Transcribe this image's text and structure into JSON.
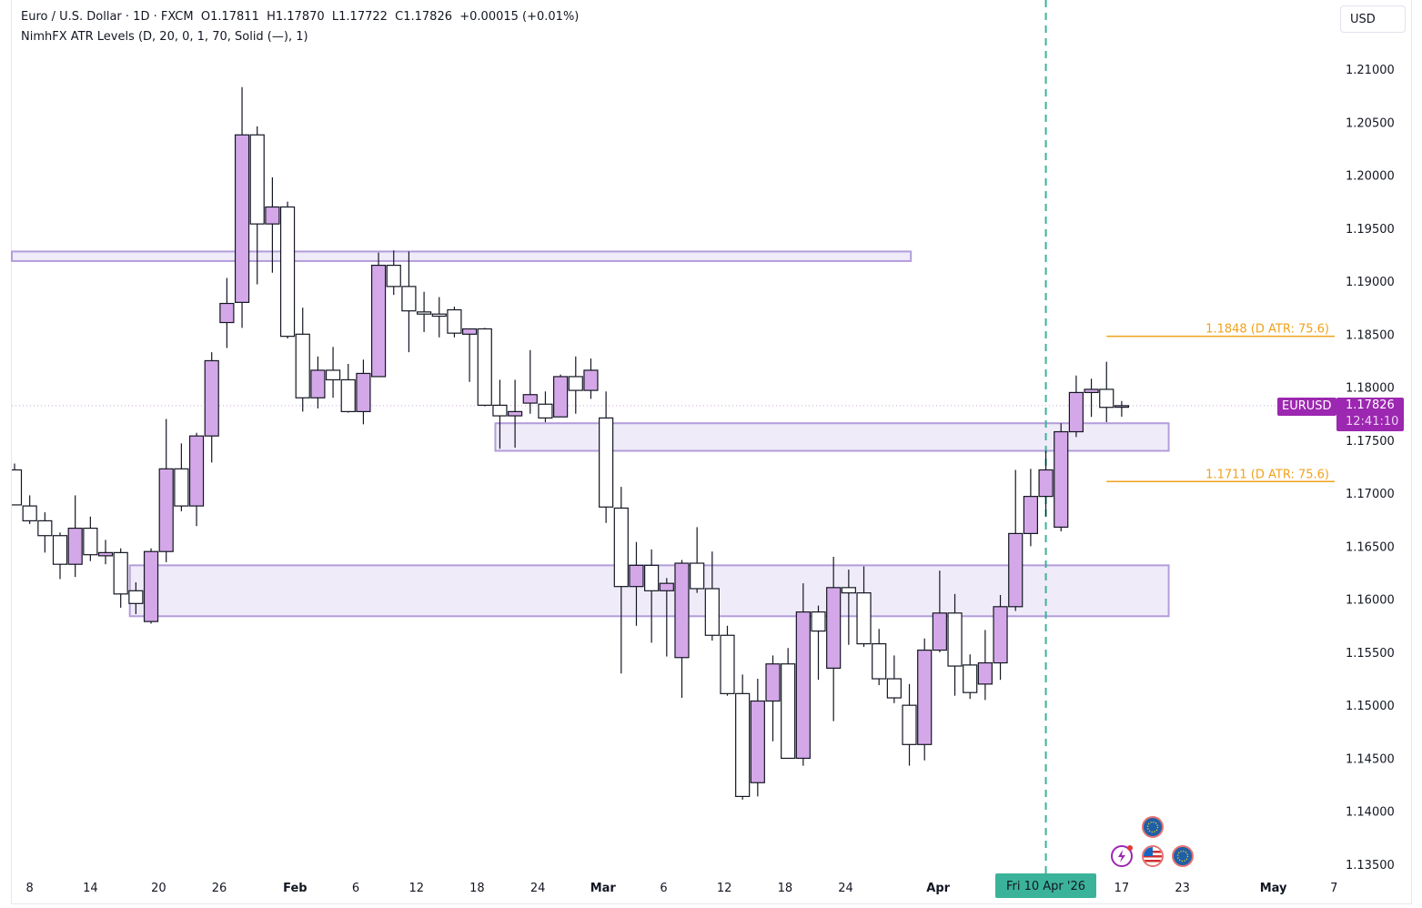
{
  "legend": {
    "line1": "Euro / U.S. Dollar · 1D · FXCM  O1.17811  H1.17870  L1.17722  C1.17826  +0.00015 (+0.01%)",
    "line2": "NimhFX ATR Levels (D, 20, 0, 1, 70, Solid (—), 1)"
  },
  "currency_button": "USD",
  "symbol_tag": "EURUSD",
  "last_price": "1.17826",
  "countdown": "12:41:10",
  "crosshair_date": "Fri 10 Apr '26",
  "colors": {
    "bull": "#d4a8e8",
    "bear": "#ffffff",
    "zone_fill": "#ede8f8",
    "zone_border": "#b39ddb",
    "atr": "#f0a21c",
    "accent": "#9c27b0",
    "crosshair": "#3bb39a"
  },
  "events": [
    "lightning-icon",
    "us-flag-icon",
    "eu-flag-icon",
    "eu-flag-icon"
  ],
  "chart_data": {
    "type": "candlestick",
    "ylim": [
      1.1335,
      1.2155
    ],
    "price_ticks": [
      "1.21000",
      "1.20500",
      "1.20000",
      "1.19500",
      "1.19000",
      "1.18500",
      "1.18000",
      "1.17500",
      "1.17000",
      "1.16500",
      "1.16000",
      "1.15500",
      "1.15000",
      "1.14500",
      "1.14000",
      "1.13500"
    ],
    "time_ticks": [
      {
        "label": "8",
        "bar": 1
      },
      {
        "label": "14",
        "bar": 5
      },
      {
        "label": "20",
        "bar": 9.5
      },
      {
        "label": "26",
        "bar": 13.5
      },
      {
        "label": "Feb",
        "bar": 18.5,
        "bold": true
      },
      {
        "label": "6",
        "bar": 22.5
      },
      {
        "label": "12",
        "bar": 26.5
      },
      {
        "label": "18",
        "bar": 30.5
      },
      {
        "label": "24",
        "bar": 34.5
      },
      {
        "label": "Mar",
        "bar": 38.8,
        "bold": true
      },
      {
        "label": "6",
        "bar": 42.8
      },
      {
        "label": "12",
        "bar": 46.8
      },
      {
        "label": "18",
        "bar": 50.8
      },
      {
        "label": "24",
        "bar": 54.8
      },
      {
        "label": "Apr",
        "bar": 60.9,
        "bold": true
      },
      {
        "label": "17",
        "bar": 73
      },
      {
        "label": "23",
        "bar": 77
      },
      {
        "label": "May",
        "bar": 83,
        "bold": true
      },
      {
        "label": "7",
        "bar": 87
      }
    ],
    "crosshair_bar": 68,
    "last_price": 1.17826,
    "candles": [
      [
        1.1722,
        1.1728,
        1.1689,
        1.1689
      ],
      [
        1.1688,
        1.1698,
        1.1671,
        1.1674
      ],
      [
        1.1674,
        1.1682,
        1.1644,
        1.166
      ],
      [
        1.166,
        1.1663,
        1.1619,
        1.1633
      ],
      [
        1.1633,
        1.1698,
        1.1621,
        1.1667
      ],
      [
        1.1667,
        1.1678,
        1.1636,
        1.1642
      ],
      [
        1.1641,
        1.1656,
        1.1633,
        1.1644
      ],
      [
        1.1644,
        1.1648,
        1.1592,
        1.1605
      ],
      [
        1.1608,
        1.1616,
        1.1586,
        1.1596
      ],
      [
        1.1579,
        1.1648,
        1.1577,
        1.1645
      ],
      [
        1.1645,
        1.177,
        1.1635,
        1.1723
      ],
      [
        1.1723,
        1.1747,
        1.1683,
        1.1688
      ],
      [
        1.1688,
        1.1757,
        1.1669,
        1.1754
      ],
      [
        1.1754,
        1.1833,
        1.1729,
        1.1825
      ],
      [
        1.1861,
        1.1903,
        1.1837,
        1.1879
      ],
      [
        1.188,
        1.2083,
        1.1856,
        1.2038
      ],
      [
        1.2038,
        1.2046,
        1.1897,
        1.1954
      ],
      [
        1.1954,
        1.1998,
        1.1908,
        1.197
      ],
      [
        1.197,
        1.1975,
        1.1846,
        1.1848
      ],
      [
        1.185,
        1.1875,
        1.1777,
        1.179
      ],
      [
        1.179,
        1.1829,
        1.178,
        1.1816
      ],
      [
        1.1816,
        1.1838,
        1.179,
        1.1807
      ],
      [
        1.1807,
        1.1822,
        1.1776,
        1.1777
      ],
      [
        1.1777,
        1.1826,
        1.1765,
        1.1813
      ],
      [
        1.181,
        1.1927,
        1.181,
        1.1915
      ],
      [
        1.1915,
        1.1929,
        1.1887,
        1.1895
      ],
      [
        1.1895,
        1.1928,
        1.1833,
        1.1872
      ],
      [
        1.1871,
        1.189,
        1.1852,
        1.1869
      ],
      [
        1.1869,
        1.1885,
        1.1847,
        1.1867
      ],
      [
        1.1873,
        1.1876,
        1.1847,
        1.1851
      ],
      [
        1.185,
        1.1855,
        1.1805,
        1.1855
      ],
      [
        1.1855,
        1.1856,
        1.1782,
        1.1783
      ],
      [
        1.1783,
        1.1807,
        1.1742,
        1.1773
      ],
      [
        1.1773,
        1.1807,
        1.1743,
        1.1777
      ],
      [
        1.1785,
        1.1835,
        1.1775,
        1.1793
      ],
      [
        1.1784,
        1.1796,
        1.1767,
        1.1771
      ],
      [
        1.1772,
        1.1812,
        1.1772,
        1.181
      ],
      [
        1.181,
        1.1829,
        1.1775,
        1.1797
      ],
      [
        1.1797,
        1.1827,
        1.1789,
        1.1816
      ],
      [
        1.1771,
        1.1796,
        1.1672,
        1.1687
      ],
      [
        1.1686,
        1.1706,
        1.153,
        1.1612
      ],
      [
        1.1612,
        1.1654,
        1.1575,
        1.1632
      ],
      [
        1.1632,
        1.1647,
        1.1559,
        1.1608
      ],
      [
        1.1608,
        1.162,
        1.1546,
        1.1615
      ],
      [
        1.1545,
        1.1637,
        1.1507,
        1.1634
      ],
      [
        1.1634,
        1.1668,
        1.1606,
        1.161
      ],
      [
        1.161,
        1.1645,
        1.1561,
        1.1566
      ],
      [
        1.1566,
        1.1575,
        1.1509,
        1.1511
      ],
      [
        1.1511,
        1.1529,
        1.1411,
        1.1414
      ],
      [
        1.1427,
        1.1525,
        1.1414,
        1.1504
      ],
      [
        1.1504,
        1.1547,
        1.1466,
        1.1539
      ],
      [
        1.1539,
        1.1554,
        1.145,
        1.145
      ],
      [
        1.145,
        1.1615,
        1.1443,
        1.1588
      ],
      [
        1.1588,
        1.1594,
        1.1524,
        1.157
      ],
      [
        1.1535,
        1.164,
        1.1485,
        1.1611
      ],
      [
        1.1611,
        1.1628,
        1.1557,
        1.1606
      ],
      [
        1.1606,
        1.1631,
        1.1555,
        1.1558
      ],
      [
        1.1558,
        1.1572,
        1.1519,
        1.1525
      ],
      [
        1.1525,
        1.1547,
        1.1502,
        1.1507
      ],
      [
        1.15,
        1.152,
        1.1443,
        1.1463
      ],
      [
        1.1463,
        1.1563,
        1.1448,
        1.1552
      ],
      [
        1.1552,
        1.1627,
        1.155,
        1.1587
      ],
      [
        1.1587,
        1.1605,
        1.1509,
        1.1537
      ],
      [
        1.1538,
        1.1548,
        1.1506,
        1.1512
      ],
      [
        1.152,
        1.1571,
        1.1505,
        1.154
      ],
      [
        1.154,
        1.1604,
        1.1524,
        1.1593
      ],
      [
        1.1593,
        1.1722,
        1.1589,
        1.1662
      ],
      [
        1.1662,
        1.1723,
        1.165,
        1.1697
      ],
      [
        1.1697,
        1.174,
        1.1678,
        1.1722
      ],
      [
        1.1668,
        1.1766,
        1.1664,
        1.1758
      ],
      [
        1.1758,
        1.1811,
        1.1753,
        1.1795
      ],
      [
        1.1795,
        1.1808,
        1.1772,
        1.1798
      ],
      [
        1.1798,
        1.1824,
        1.1767,
        1.1781
      ],
      [
        1.17811,
        1.1787,
        1.17722,
        1.17826
      ]
    ],
    "zones": [
      {
        "from_bar": -0.2,
        "to_bar": 59.1,
        "top": 1.1928,
        "bottom": 1.1919
      },
      {
        "from_bar": 31.7,
        "to_bar": 76.1,
        "top": 1.1766,
        "bottom": 1.174
      },
      {
        "from_bar": 7.6,
        "to_bar": 76.1,
        "top": 1.1632,
        "bottom": 1.1584
      }
    ],
    "atr_levels": [
      {
        "value": 1.1848,
        "label": "1.1848 (D ATR: 75.6)",
        "from_bar": 72,
        "to_bar": 87
      },
      {
        "value": 1.1711,
        "label": "1.1711 (D ATR: 75.6)",
        "from_bar": 72,
        "to_bar": 87
      }
    ]
  }
}
